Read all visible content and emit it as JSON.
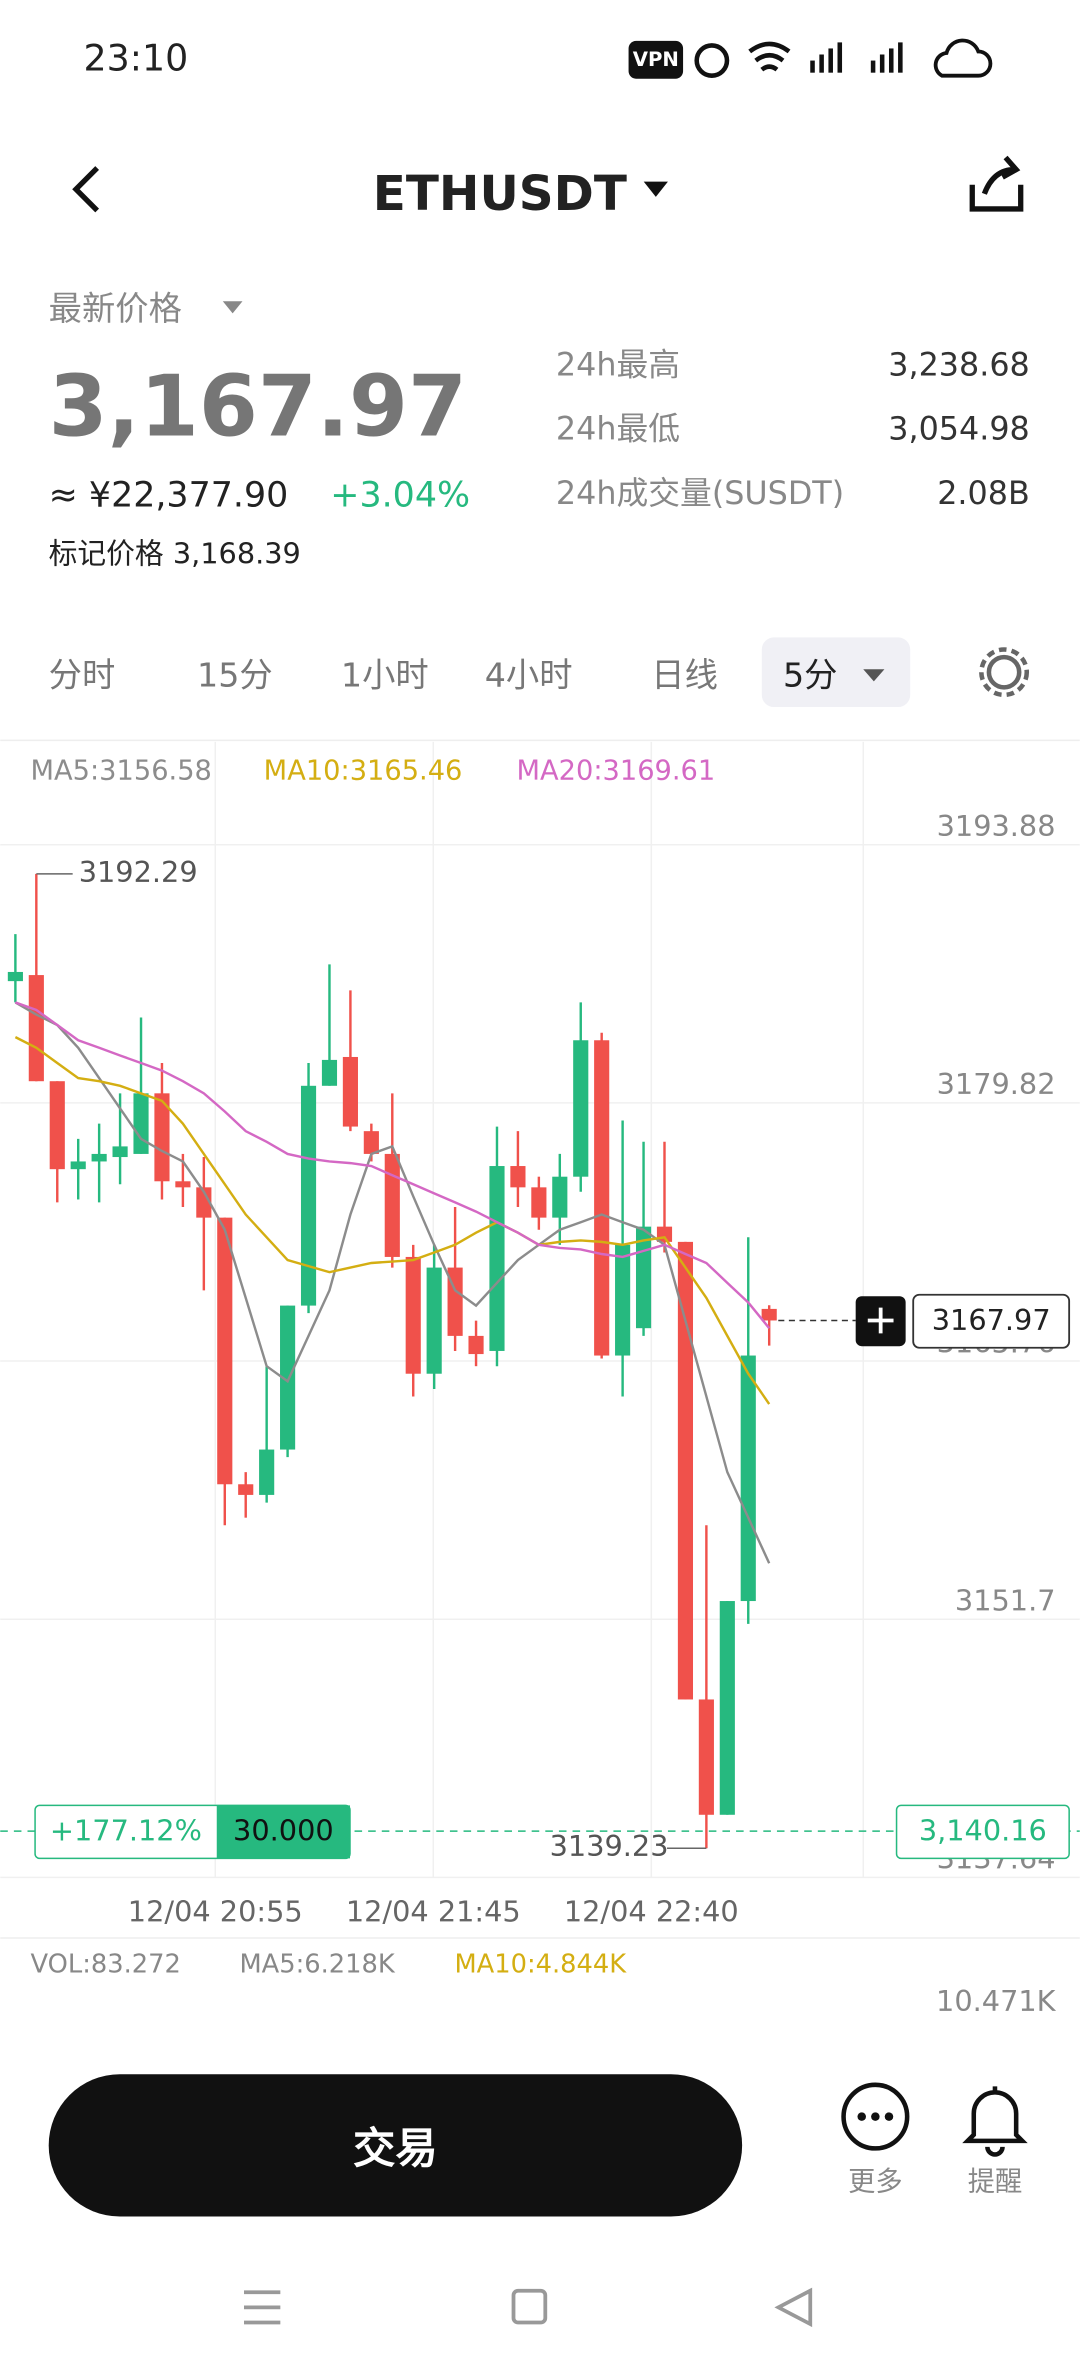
{
  "status": {
    "time": "23:10",
    "vpn": "VPN"
  },
  "header": {
    "title": "ETHUSDT"
  },
  "ticker": {
    "price_caption": "最新价格",
    "price": "3,167.97",
    "cny": "≈ ¥22,377.90",
    "change": "+3.04%",
    "mark_price": "标记价格 3,168.39",
    "stats": [
      {
        "label": "24h最高",
        "value": "3,238.68"
      },
      {
        "label": "24h最低",
        "value": "3,054.98"
      },
      {
        "label": "24h成交量(SUSDT)",
        "value": "2.08B"
      }
    ]
  },
  "tabs": [
    "分时",
    "15分",
    "1小时",
    "4小时",
    "日线",
    "5分"
  ],
  "chart_data": {
    "type": "candlestick",
    "up_color": "#26b97f",
    "down_color": "#f0514b",
    "grid": true,
    "ylim": [
      3137.64,
      3199.48
    ],
    "yticks": [
      3193.88,
      3179.82,
      3165.76,
      3151.7,
      3137.64
    ],
    "x_labels": [
      "12/04 20:55",
      "12/04 21:45",
      "12/04 22:40"
    ],
    "open": [
      3186.45,
      3186.78,
      3181.0,
      3176.21,
      3176.63,
      3176.87,
      3177.04,
      3180.34,
      3175.55,
      3175.22,
      3173.57,
      3159.05,
      3158.47,
      3160.94,
      3168.78,
      3180.75,
      3182.32,
      3178.28,
      3177.04,
      3171.43,
      3165.07,
      3170.85,
      3167.13,
      3166.31,
      3176.38,
      3175.22,
      3173.57,
      3175.8,
      3183.23,
      3166.06,
      3167.55,
      3173.08,
      3172.25,
      3147.33,
      3141.05,
      3152.69,
      3168.6
    ],
    "high": [
      3189.01,
      3192.29,
      3181.0,
      3177.86,
      3178.69,
      3180.34,
      3184.47,
      3181.99,
      3177.04,
      3176.87,
      3173.57,
      3159.71,
      3165.48,
      3168.78,
      3181.99,
      3187.36,
      3185.95,
      3178.69,
      3180.34,
      3172.09,
      3172.09,
      3174.15,
      3167.96,
      3178.53,
      3178.28,
      3175.8,
      3177.04,
      3185.29,
      3183.64,
      3178.86,
      3177.7,
      3177.7,
      3172.25,
      3156.82,
      3152.69,
      3172.5,
      3168.8
    ],
    "low": [
      3185.29,
      3181.0,
      3174.4,
      3174.56,
      3174.4,
      3175.39,
      3177.04,
      3174.56,
      3174.15,
      3169.61,
      3156.82,
      3157.23,
      3158.05,
      3160.53,
      3168.37,
      3180.75,
      3178.28,
      3176.63,
      3170.85,
      3163.83,
      3164.24,
      3166.31,
      3165.48,
      3165.48,
      3174.15,
      3172.91,
      3172.09,
      3174.98,
      3165.9,
      3163.83,
      3167.13,
      3171.67,
      3147.33,
      3139.23,
      3141.05,
      3151.45,
      3166.6
    ],
    "close": [
      3186.95,
      3181.0,
      3176.21,
      3176.63,
      3177.04,
      3177.45,
      3180.34,
      3175.55,
      3175.22,
      3173.57,
      3159.05,
      3158.47,
      3160.94,
      3168.78,
      3180.75,
      3182.16,
      3178.53,
      3177.04,
      3171.43,
      3165.07,
      3170.85,
      3167.13,
      3166.14,
      3176.38,
      3175.22,
      3173.57,
      3175.8,
      3183.23,
      3166.06,
      3172.09,
      3173.08,
      3172.25,
      3147.33,
      3141.05,
      3152.69,
      3166.06,
      3167.97
    ],
    "ma_lines": [
      {
        "label": "MA5:3156.58",
        "color": "#8c8c8c",
        "values": [
          3185.29,
          3184.63,
          3184.06,
          3182.82,
          3181.17,
          3179.52,
          3177.86,
          3177.2,
          3176.63,
          3174.98,
          3172.91,
          3169.2,
          3165.48,
          3164.66,
          3167.13,
          3169.61,
          3173.74,
          3177.04,
          3177.45,
          3174.73,
          3172.09,
          3169.61,
          3168.78,
          3170.02,
          3171.26,
          3172.09,
          3172.91,
          3173.32,
          3173.74,
          3173.32,
          3172.91,
          3172.09,
          3167.96,
          3163.83,
          3159.71,
          3157.23,
          3154.75
        ]
      },
      {
        "label": "MA10:3165.46",
        "color": "#d4ae12",
        "values": [
          3183.4,
          3182.82,
          3181.99,
          3181.17,
          3181.0,
          3180.75,
          3180.34,
          3179.93,
          3178.69,
          3177.04,
          3175.39,
          3173.74,
          3172.5,
          3171.26,
          3170.93,
          3170.6,
          3170.85,
          3171.1,
          3171.18,
          3171.26,
          3171.67,
          3172.09,
          3172.75,
          3173.32,
          3172.75,
          3172.09,
          3172.25,
          3172.33,
          3172.25,
          3172.09,
          3172.33,
          3172.5,
          3170.85,
          3169.2,
          3167.13,
          3165.07,
          3163.42
        ]
      },
      {
        "label": "MA20:3169.61",
        "color": "#d468c4",
        "values": [
          3185.29,
          3184.88,
          3184.06,
          3183.23,
          3182.82,
          3182.4,
          3181.99,
          3181.58,
          3181.0,
          3180.34,
          3179.35,
          3178.28,
          3177.7,
          3177.04,
          3176.79,
          3176.63,
          3176.54,
          3176.38,
          3175.88,
          3175.39,
          3174.89,
          3174.4,
          3173.9,
          3173.32,
          3172.75,
          3172.09,
          3171.92,
          3171.84,
          3171.59,
          3171.43,
          3171.76,
          3172.09,
          3171.59,
          3171.1,
          3170.02,
          3168.95,
          3167.55
        ]
      }
    ],
    "position": {
      "price": 3140.16,
      "price_label": "3,140.16",
      "pnl": "+177.12%",
      "size": "30.000"
    },
    "volume": {
      "vol": "VOL:83.272",
      "ma5": "MA5:6.218K",
      "ma10": "MA10:4.844K",
      "max": "10.471K"
    }
  },
  "footer": {
    "trade": "交易",
    "more": "更多",
    "alert": "提醒"
  }
}
